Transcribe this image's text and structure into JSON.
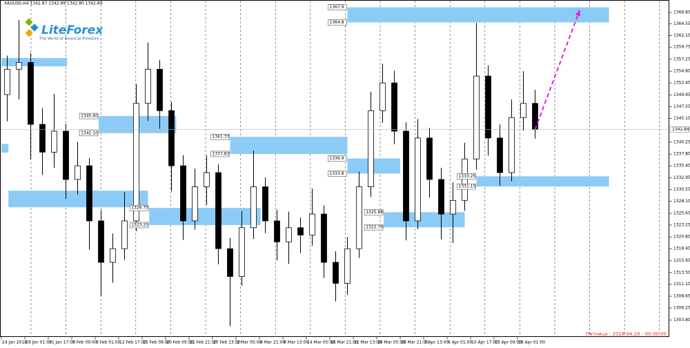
{
  "header": "XAUUSD,H4  1342.87 1342.89 1342.80 1342.84",
  "logo": {
    "name": "LiteForex",
    "tagline": "The World of Financial Freedom"
  },
  "footer": "Пятница : 2018.04.20 - 00:00:00",
  "chart_data": {
    "type": "candlestick",
    "ylim": [
      1300.3,
      1369.4
    ],
    "slots": 57,
    "yticks": [
      1366.85,
      1364.55,
      {
        "value": 1362.1,
        "label": "1362.10"
      },
      1359.75,
      1357.25,
      {
        "value": 1354.8,
        "label": "1354.80"
      },
      {
        "value": 1352.4,
        "label": "1352.40"
      },
      1349.95,
      1347.55,
      {
        "value": 1345.1,
        "label": "1345.10"
      },
      1340.25,
      {
        "value": 1337.8,
        "label": "1337.80"
      },
      {
        "value": 1335.4,
        "label": "1335.40"
      },
      1332.95,
      1330.55,
      {
        "value": 1328.1,
        "label": "1328.10"
      },
      1325.65,
      1323.25,
      {
        "value": 1320.8,
        "label": "1320.80"
      },
      {
        "value": 1318.4,
        "label": "1318.40"
      },
      1315.95,
      {
        "value": 1313.5,
        "label": "1313.50"
      },
      {
        "value": 1311.1,
        "label": "1311.10"
      },
      1308.65,
      1306.25,
      {
        "value": 1303.8,
        "label": "1303.80"
      }
    ],
    "categories": [
      "24 Jan 2018",
      "29 Jan 01:00",
      "31 Jan 17:00",
      "5 Feb 09:00",
      "8 Feb 01:00",
      "12 Feb 17:00",
      "15 Feb 09:00",
      "20 Feb 05:00",
      "22 Feb 21:00",
      "27 Feb 13:00",
      "2 Mar 05:00",
      "6 Mar 21:00",
      "9 Mar 13:00",
      "14 Mar 05:00",
      "16 Mar 21:00",
      "21 Mar 13:00",
      "26 Mar 05:00",
      "28 Mar 21:00",
      "3 Apr 13:00",
      "6 Apr 01:00",
      "10 Apr 17:00",
      "13 Apr 09:00",
      "18 Apr 01:00"
    ],
    "last_price": 1342.84,
    "open": [
      1350.0,
      1355.2,
      1356.6,
      1343.9,
      1338.2,
      1342.5,
      1332.6,
      1335.4,
      1324.1,
      1315.6,
      1318.4,
      1324.1,
      1348.2,
      1355.2,
      1346.7,
      1335.4,
      1324.1,
      1331.1,
      1334.0,
      1318.4,
      1312.7,
      1322.7,
      1331.1,
      1324.1,
      1319.8,
      1322.7,
      1321.2,
      1325.5,
      1315.6,
      1311.3,
      1318.4,
      1331.1,
      1346.7,
      1352.4,
      1342.5,
      1324.1,
      1341.1,
      1332.6,
      1325.5,
      1328.3,
      1336.8,
      1353.8,
      1341.1,
      1334.0,
      1345.3,
      1348.2
    ],
    "high": [
      1358.0,
      1365.3,
      1358.5,
      1347.2,
      1350.1,
      1344.0,
      1340.3,
      1337.0,
      1326.3,
      1321.5,
      1330.0,
      1352.2,
      1360.7,
      1357.1,
      1348.5,
      1337.6,
      1334.8,
      1337.5,
      1335.7,
      1320.6,
      1326.1,
      1338.5,
      1333.0,
      1326.4,
      1326.0,
      1324.8,
      1330.7,
      1327.3,
      1317.9,
      1320.8,
      1334.2,
      1350.6,
      1356.3,
      1354.9,
      1344.3,
      1345.0,
      1343.2,
      1335.0,
      1332.0,
      1340.1,
      1364.7,
      1356.0,
      1343.9,
      1349.0,
      1354.8,
      1351.0
    ],
    "low": [
      1344.5,
      1349.0,
      1336.8,
      1333.5,
      1335.0,
      1328.6,
      1329.5,
      1318.2,
      1308.7,
      1311.4,
      1316.1,
      1322.0,
      1344.6,
      1343.0,
      1330.2,
      1320.2,
      1322.3,
      1327.4,
      1315.2,
      1302.5,
      1310.8,
      1320.4,
      1321.6,
      1316.0,
      1315.3,
      1317.5,
      1319.0,
      1312.4,
      1307.6,
      1308.9,
      1316.5,
      1329.0,
      1344.2,
      1339.8,
      1320.1,
      1322.4,
      1328.9,
      1320.3,
      1319.6,
      1326.2,
      1334.6,
      1337.5,
      1331.3,
      1332.2,
      1342.6,
      1341.0
    ],
    "close": [
      1355.2,
      1356.6,
      1343.9,
      1338.2,
      1342.5,
      1332.6,
      1335.4,
      1324.1,
      1315.6,
      1318.4,
      1324.1,
      1348.2,
      1355.2,
      1346.7,
      1335.4,
      1324.1,
      1331.1,
      1334.0,
      1318.4,
      1312.7,
      1322.7,
      1331.1,
      1324.1,
      1319.8,
      1322.7,
      1321.2,
      1325.5,
      1315.6,
      1311.3,
      1318.4,
      1331.1,
      1346.7,
      1352.4,
      1342.5,
      1324.1,
      1341.1,
      1332.6,
      1325.5,
      1328.3,
      1336.8,
      1353.8,
      1341.1,
      1334.0,
      1345.3,
      1348.2,
      1342.84
    ],
    "zones": [
      {
        "start": 29.5,
        "end": 51.8,
        "high": 1367.9,
        "low": 1364.8
      },
      {
        "start": 8.3,
        "end": 14.9,
        "high": {
          "value": 1345.6,
          "label": "1345.60"
        },
        "low": {
          "value": 1342.1,
          "label": "1342.10"
        }
      },
      {
        "start": 19.5,
        "end": 29.5,
        "high": 1341.33,
        "low": 1337.83
      },
      {
        "start": 29.5,
        "end": 34,
        "high": 1336.9,
        "low": 1333.8
      },
      {
        "start": 12.6,
        "end": 22.1,
        "high": 1326.75,
        "low": 1323.25
      },
      {
        "start": 32.6,
        "end": 39.5,
        "high": 1325.88,
        "low": 1322.79
      },
      {
        "start": 40.5,
        "end": 51.8,
        "high": 1333.25,
        "low": 1331.15
      },
      {
        "start": 0,
        "end": 5.6,
        "high": 1357.5,
        "low": 1355.8
      },
      {
        "start": 0,
        "end": 0.6,
        "high": 1339.9,
        "low": 1338.1
      },
      {
        "start": 0.6,
        "end": 12.5,
        "high": 1330.3,
        "low": 1326.9
      }
    ],
    "zone_color": "#8ccbf5",
    "arrow": {
      "from": [
        45.5,
        1342.84
      ],
      "to": [
        49.3,
        1367.3
      ],
      "color": "#e020e0"
    }
  }
}
